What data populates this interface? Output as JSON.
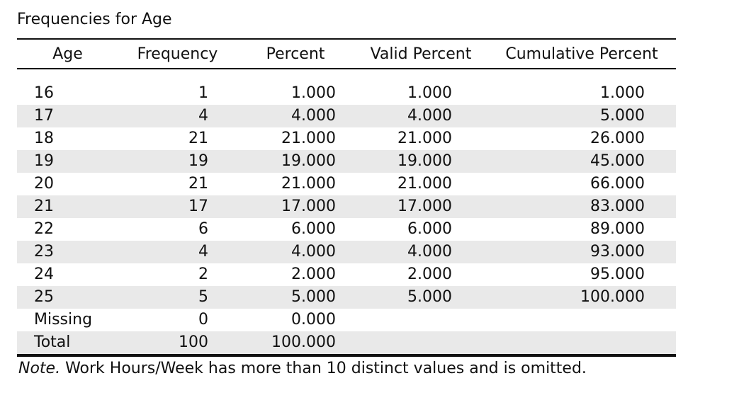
{
  "title": "Frequencies for Age",
  "columns": [
    "Age",
    "Frequency",
    "Percent",
    "Valid Percent",
    "Cumulative Percent"
  ],
  "rows": [
    {
      "age": "16",
      "frequency": "1",
      "percent": "1.000",
      "valid_percent": "1.000",
      "cumulative_percent": "1.000"
    },
    {
      "age": "17",
      "frequency": "4",
      "percent": "4.000",
      "valid_percent": "4.000",
      "cumulative_percent": "5.000"
    },
    {
      "age": "18",
      "frequency": "21",
      "percent": "21.000",
      "valid_percent": "21.000",
      "cumulative_percent": "26.000"
    },
    {
      "age": "19",
      "frequency": "19",
      "percent": "19.000",
      "valid_percent": "19.000",
      "cumulative_percent": "45.000"
    },
    {
      "age": "20",
      "frequency": "21",
      "percent": "21.000",
      "valid_percent": "21.000",
      "cumulative_percent": "66.000"
    },
    {
      "age": "21",
      "frequency": "17",
      "percent": "17.000",
      "valid_percent": "17.000",
      "cumulative_percent": "83.000"
    },
    {
      "age": "22",
      "frequency": "6",
      "percent": "6.000",
      "valid_percent": "6.000",
      "cumulative_percent": "89.000"
    },
    {
      "age": "23",
      "frequency": "4",
      "percent": "4.000",
      "valid_percent": "4.000",
      "cumulative_percent": "93.000"
    },
    {
      "age": "24",
      "frequency": "2",
      "percent": "2.000",
      "valid_percent": "2.000",
      "cumulative_percent": "95.000"
    },
    {
      "age": "25",
      "frequency": "5",
      "percent": "5.000",
      "valid_percent": "5.000",
      "cumulative_percent": "100.000"
    },
    {
      "age": "Missing",
      "frequency": "0",
      "percent": "0.000",
      "valid_percent": "",
      "cumulative_percent": ""
    },
    {
      "age": "Total",
      "frequency": "100",
      "percent": "100.000",
      "valid_percent": "",
      "cumulative_percent": ""
    }
  ],
  "note": {
    "label": "Note.",
    "text": " Work Hours/Week has more than 10 distinct values and is omitted."
  },
  "colors": {
    "stripe": "#e9e9e9",
    "rule": "#111111"
  }
}
